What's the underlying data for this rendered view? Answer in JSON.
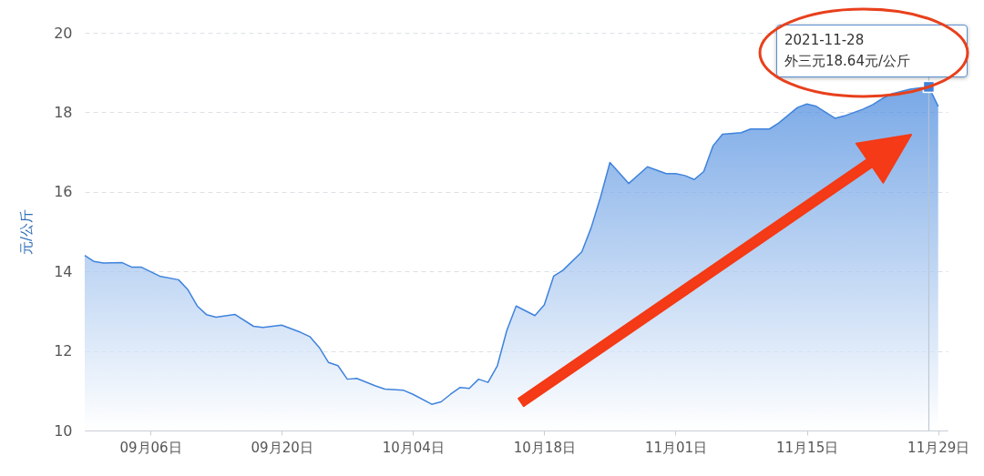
{
  "chart_data": {
    "type": "area",
    "ylabel": "元/公斤",
    "x": [
      "2021-08-30",
      "2021-08-31",
      "2021-09-01",
      "2021-09-03",
      "2021-09-04",
      "2021-09-05",
      "2021-09-07",
      "2021-09-09",
      "2021-09-10",
      "2021-09-11",
      "2021-09-12",
      "2021-09-13",
      "2021-09-15",
      "2021-09-17",
      "2021-09-18",
      "2021-09-20",
      "2021-09-22",
      "2021-09-23",
      "2021-09-24",
      "2021-09-25",
      "2021-09-26",
      "2021-09-27",
      "2021-09-28",
      "2021-09-30",
      "2021-10-01",
      "2021-10-03",
      "2021-10-04",
      "2021-10-06",
      "2021-10-07",
      "2021-10-08",
      "2021-10-09",
      "2021-10-10",
      "2021-10-11",
      "2021-10-12",
      "2021-10-13",
      "2021-10-14",
      "2021-10-15",
      "2021-10-17",
      "2021-10-18",
      "2021-10-19",
      "2021-10-20",
      "2021-10-22",
      "2021-10-23",
      "2021-10-24",
      "2021-10-25",
      "2021-10-27",
      "2021-10-29",
      "2021-10-31",
      "2021-11-01",
      "2021-11-02",
      "2021-11-03",
      "2021-11-04",
      "2021-11-05",
      "2021-11-06",
      "2021-11-08",
      "2021-11-09",
      "2021-11-11",
      "2021-11-12",
      "2021-11-14",
      "2021-11-15",
      "2021-11-16",
      "2021-11-18",
      "2021-11-19",
      "2021-11-21",
      "2021-11-22",
      "2021-11-23",
      "2021-11-24",
      "2021-11-26",
      "2021-11-28",
      "2021-11-29"
    ],
    "series": [
      {
        "color": "#3f83dc",
        "values": [
          14.4,
          14.25,
          14.21,
          14.22,
          14.11,
          14.11,
          13.88,
          13.79,
          13.54,
          13.13,
          12.91,
          12.85,
          12.92,
          12.62,
          12.59,
          12.65,
          12.47,
          12.36,
          12.09,
          11.71,
          11.63,
          11.29,
          11.31,
          11.12,
          11.04,
          11.01,
          10.91,
          10.66,
          10.72,
          10.91,
          11.08,
          11.06,
          11.29,
          11.21,
          11.63,
          12.51,
          13.13,
          12.89,
          13.16,
          13.88,
          14.03,
          14.49,
          15.1,
          15.87,
          16.74,
          16.21,
          16.63,
          16.46,
          16.46,
          16.41,
          16.31,
          16.51,
          17.16,
          17.45,
          17.49,
          17.58,
          17.58,
          17.73,
          18.12,
          18.21,
          18.15,
          17.85,
          17.91,
          18.08,
          18.19,
          18.34,
          18.46,
          18.58,
          18.64,
          18.15
        ]
      }
    ],
    "xlim": [
      "2021-08-30",
      "2021-11-30"
    ],
    "xticks": [
      {
        "value": "2021-09-06",
        "label": "09月06日"
      },
      {
        "value": "2021-09-20",
        "label": "09月20日"
      },
      {
        "value": "2021-10-04",
        "label": "10月04日"
      },
      {
        "value": "2021-10-18",
        "label": "10月18日"
      },
      {
        "value": "2021-11-01",
        "label": "11月01日"
      },
      {
        "value": "2021-11-15",
        "label": "11月15日"
      },
      {
        "value": "2021-11-29",
        "label": "11月29日"
      }
    ],
    "ref_lines": [
      {
        "axis": "x",
        "value": "2021-11-28",
        "color": "#b9c3ce"
      }
    ],
    "ylim": [
      10,
      20
    ],
    "yticks": [
      10,
      12,
      14,
      16,
      18,
      20
    ],
    "grid": "y",
    "annotations": [
      {
        "text": "2021-11-28\n外三元18.64元/公斤",
        "x": "2021-11-28",
        "y": 18.64
      }
    ]
  }
}
